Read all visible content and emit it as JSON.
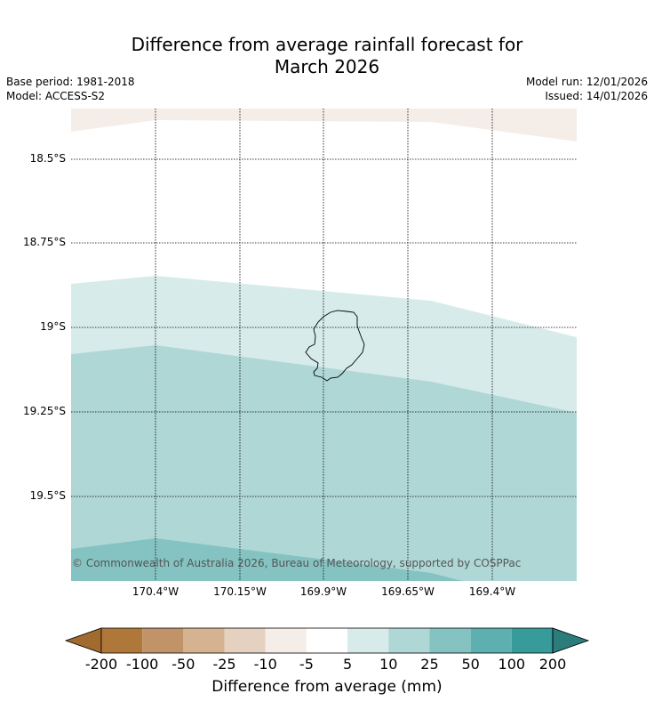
{
  "title_line1": "Difference from average rainfall forecast for",
  "title_line2": "March 2026",
  "meta": {
    "base_period": "Base period: 1981-2018",
    "model": "Model: ACCESS-S2",
    "model_run": "Model run: 12/01/2026",
    "issued": "Issued: 14/01/2026"
  },
  "lat_labels": [
    "18.5°S",
    "18.75°S",
    "19°S",
    "19.25°S",
    "19.5°S"
  ],
  "lon_labels": [
    "170.4°W",
    "170.15°W",
    "169.9°W",
    "169.65°W",
    "169.4°W"
  ],
  "copyright": "© Commonwealth of Australia 2026, Bureau of Meteorology, supported by COSPPac",
  "colorbar": {
    "title": "Difference from average (mm)",
    "ticks": [
      "-200",
      "-100",
      "-50",
      "-25",
      "-10",
      "-5",
      "5",
      "10",
      "25",
      "50",
      "100",
      "200"
    ],
    "colors": [
      "#a16a2e",
      "#b0773b",
      "#c09468",
      "#d5b390",
      "#e5d1c0",
      "#f5ede8",
      "#ffffff",
      "#d6ebea",
      "#aed7d6",
      "#84c3c2",
      "#5eb0b0",
      "#379b99",
      "#2c7c7c"
    ]
  },
  "map_colors": {
    "minus_5_to_minus_10": "#f5ede8",
    "plus_5_to_10": "#d6ebea",
    "plus_10_to_25": "#aed7d6",
    "plus_25_to_50": "#84c3c2"
  }
}
